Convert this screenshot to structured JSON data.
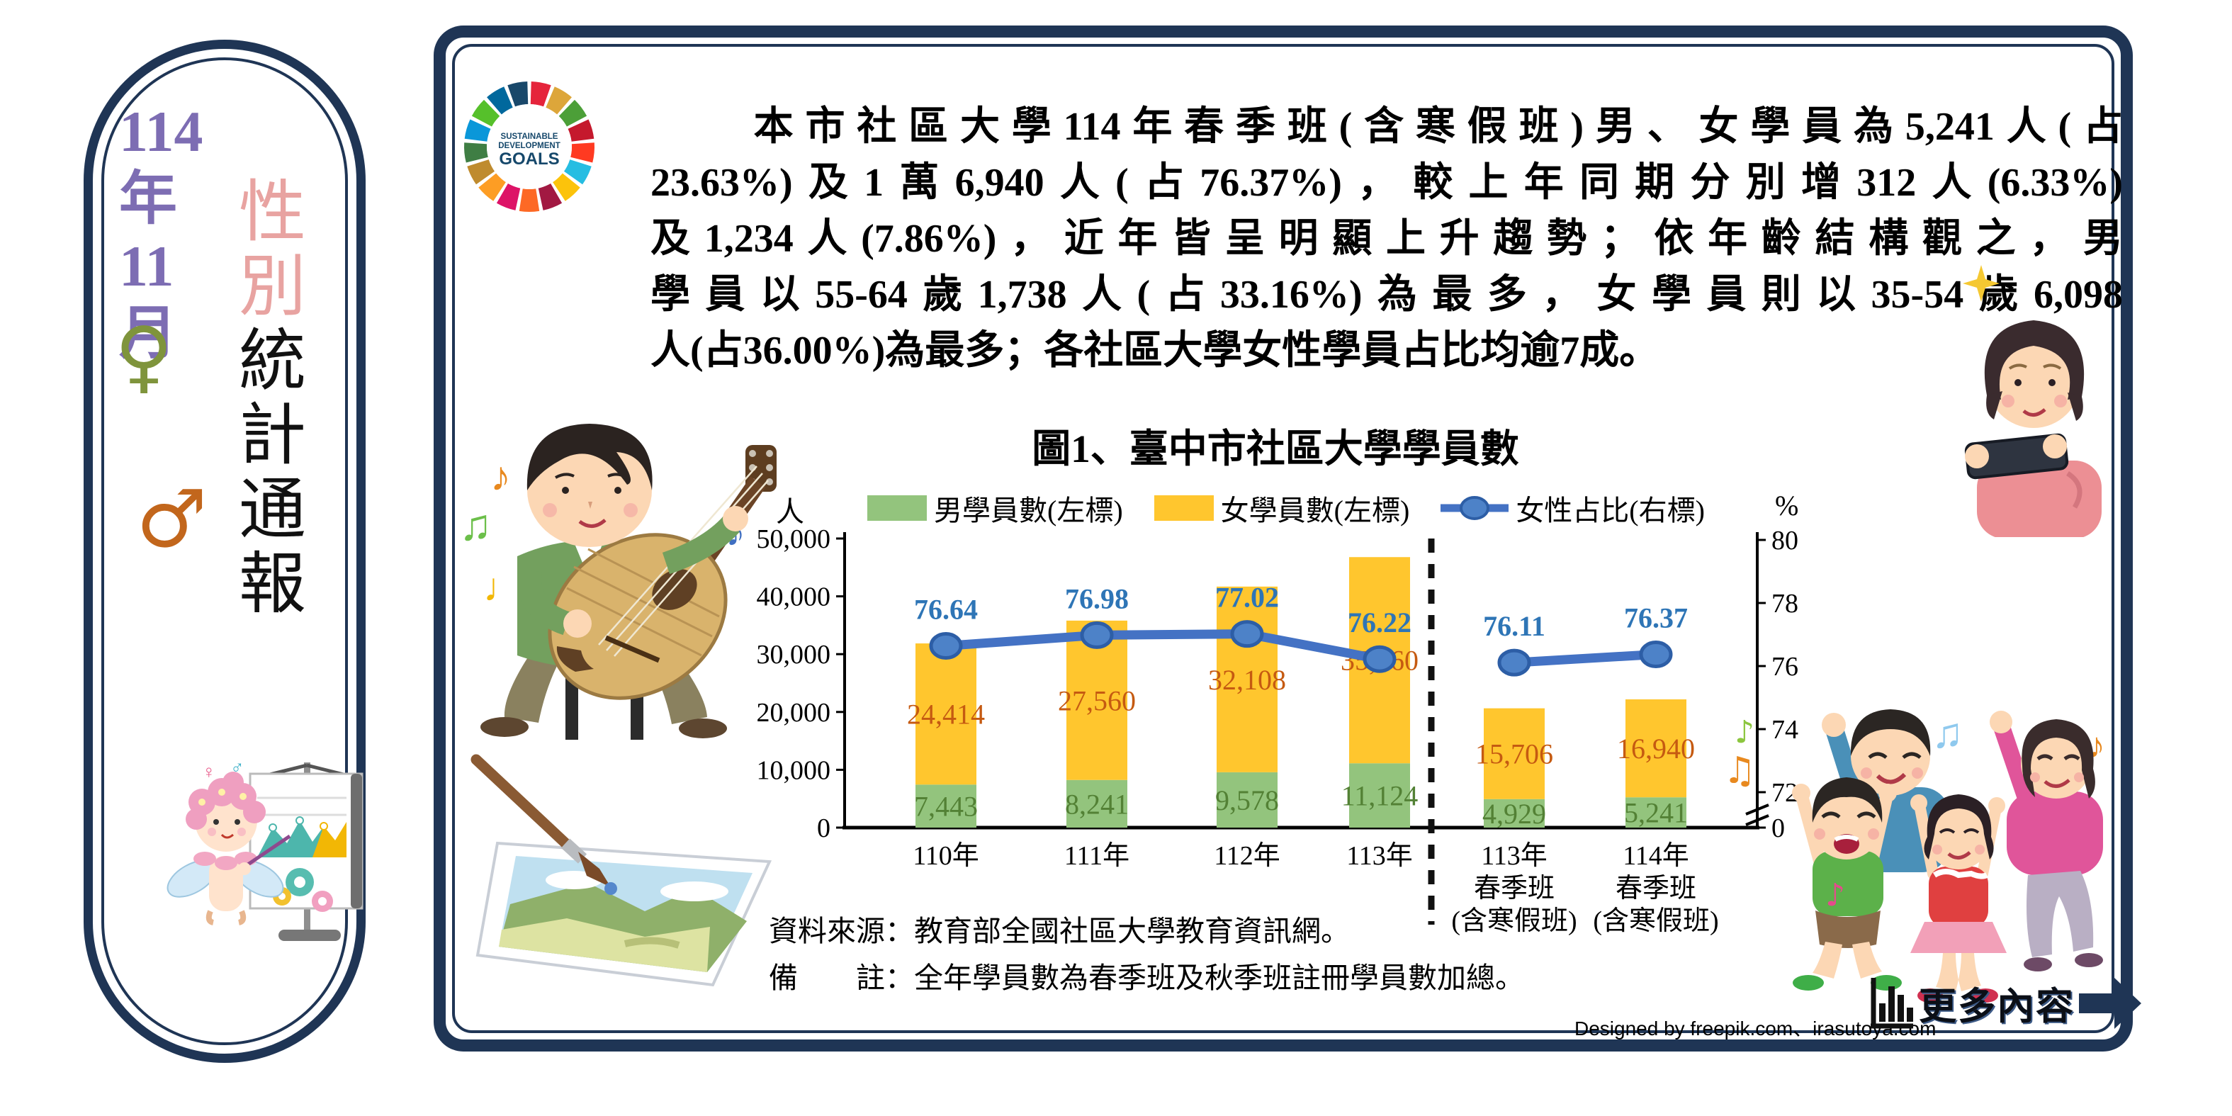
{
  "sidebar": {
    "issue": [
      "114",
      "年",
      "11",
      "月"
    ],
    "female_symbol": "♀",
    "male_symbol": "♂",
    "title_pink": "性別",
    "title_black": "統計通報"
  },
  "sdg": {
    "line1": "SUSTAINABLE",
    "line2": "DEVELOPMENT",
    "line3": "GOALS",
    "colors": [
      "#e5243b",
      "#dda63a",
      "#4c9f38",
      "#c5192d",
      "#ff3a21",
      "#26bde2",
      "#fcc30b",
      "#a21942",
      "#fd6925",
      "#dd1367",
      "#fd9d24",
      "#bf8b2e",
      "#3f7e44",
      "#0a97d9",
      "#56c02b",
      "#00689d",
      "#19486a"
    ]
  },
  "header_paragraph": {
    "lines": [
      "　　本市社區大學114年春季班(含寒假班)男、女學員為5,241人(占",
      "23.63%)及1萬6,940人(占76.37%)，較上年同期分別增312人(6.33%)",
      "及1,234人(7.86%)，近年皆呈明顯上升趨勢；依年齡結構觀之，男",
      "學員以55-64歲1,738人(占33.16%)為最多，女學員則以35-54歲6,098",
      "人(占36.00%)為最多；各社區大學女性學員占比均逾7成。"
    ]
  },
  "chart_data": {
    "type": "bar+line",
    "title": "圖1、臺中市社區大學學員數",
    "left_axis_unit": "人",
    "right_axis_unit": "%",
    "left_ylim": [
      0,
      50000
    ],
    "right_ylim": [
      72,
      80
    ],
    "left_axis_ticks": [
      "50,000",
      "40,000",
      "30,000",
      "20,000",
      "10,000",
      "0"
    ],
    "right_axis_ticks": [
      "80",
      "78",
      "76",
      "74",
      "72",
      "0"
    ],
    "categories": [
      [
        "110年"
      ],
      [
        "111年"
      ],
      [
        "112年"
      ],
      [
        "113年"
      ],
      [
        "113年",
        "春季班",
        "(含寒假班)"
      ],
      [
        "114年",
        "春季班",
        "(含寒假班)"
      ]
    ],
    "separator_after_index": 3,
    "grid": "off",
    "legend_position": "top",
    "series": [
      {
        "name": "男學員數(左標)",
        "type": "bar",
        "axis": "left",
        "color": "#93c47d",
        "label_color": "#538135",
        "values": [
          7443,
          8241,
          9578,
          11124,
          4929,
          5241
        ],
        "labels": [
          "7,443",
          "8,241",
          "9,578",
          "11,124",
          "4,929",
          "5,241"
        ]
      },
      {
        "name": "女學員數(左標)",
        "type": "bar",
        "axis": "left",
        "color": "#ffc62e",
        "label_color": "#c55a11",
        "values": [
          24414,
          27560,
          32108,
          35660,
          15706,
          16940
        ],
        "labels": [
          "24,414",
          "27,560",
          "32,108",
          "35,660",
          "15,706",
          "16,940"
        ]
      },
      {
        "name": "女性占比(右標)",
        "type": "line",
        "axis": "right",
        "color": "#4472c4",
        "label_color": "#2e75b6",
        "values": [
          76.64,
          76.98,
          77.02,
          76.22,
          76.11,
          76.37
        ],
        "labels": [
          "76.64",
          "76.98",
          "77.02",
          "76.22",
          "76.11",
          "76.37"
        ]
      }
    ]
  },
  "notes": {
    "source": "資料來源：教育部全國社區大學教育資訊網。",
    "remark": "備　　註：全年學員數為春季班及秋季班註冊學員數加總。"
  },
  "footer": {
    "credit": "Designed by freepik.com、irasutoya.com",
    "more_label": "更多內容"
  },
  "colors": {
    "frame_navy": "#1f3555",
    "issue_purple": "#7d6db3",
    "title_pink": "#e8a3a1",
    "female_symbol_olive": "#7f943c",
    "male_symbol_brown": "#c2661c",
    "bar_male_green": "#93c47d",
    "bar_female_yellow": "#ffc62e",
    "line_blue": "#4472c4"
  }
}
